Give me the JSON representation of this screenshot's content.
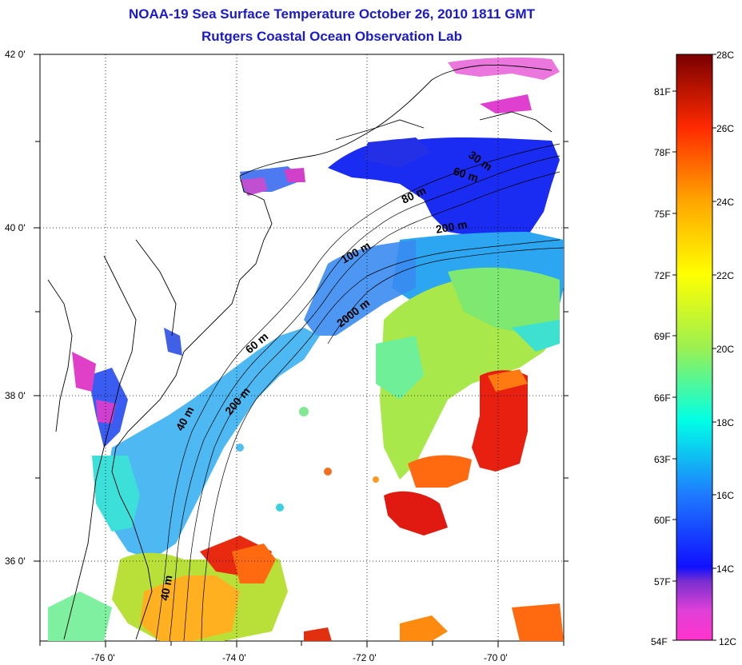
{
  "title": {
    "line1": "NOAA-19 Sea Surface Temperature October 26, 2010 1811 GMT",
    "line2": "Rutgers Coastal Ocean Observation Lab"
  },
  "map": {
    "lat_labels": [
      "42 0'",
      "40 0'",
      "38 0'",
      "36 0'"
    ],
    "lon_labels": [
      "-76 0'",
      "-74 0'",
      "-72 0'",
      "-70 0'"
    ],
    "lat_range": [
      35,
      42
    ],
    "lon_range": [
      -77,
      -69
    ],
    "grid": "dotted",
    "isobath_labels": [
      "30 m",
      "60 m",
      "80 m",
      "200 m",
      "100 m",
      "2000 m",
      "60 m",
      "200 m",
      "40 m",
      "40 m"
    ]
  },
  "colorbar": {
    "celsius_labels": [
      "28C",
      "26C",
      "24C",
      "22C",
      "20C",
      "18C",
      "16C",
      "14C",
      "12C"
    ],
    "fahrenheit_labels": [
      "81F",
      "78F",
      "75F",
      "72F",
      "69F",
      "66F",
      "63F",
      "60F",
      "57F",
      "54F"
    ],
    "range_c": [
      12,
      28
    ],
    "colors": [
      "#ff33cc",
      "#7a2fcf",
      "#1010ff",
      "#1e7cff",
      "#00ffe6",
      "#40f0a0",
      "#a8f040",
      "#ffff00",
      "#ffa500",
      "#ff2a00",
      "#b00000",
      "#7a0000"
    ]
  }
}
